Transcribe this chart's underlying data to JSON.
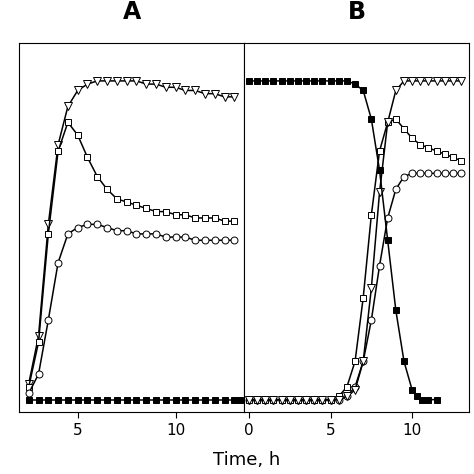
{
  "panel_A": {
    "label": "A",
    "x_range": [
      2,
      13.5
    ],
    "x_ticks": [
      5,
      10
    ],
    "series": {
      "open_triangle": {
        "x": [
          2.5,
          3.0,
          3.5,
          4.0,
          4.5,
          5.0,
          5.5,
          6.0,
          6.5,
          7.0,
          7.5,
          8.0,
          8.5,
          9.0,
          9.5,
          10.0,
          10.5,
          11.0,
          11.5,
          12.0,
          12.5,
          13.0
        ],
        "y": [
          0.05,
          0.2,
          0.55,
          0.8,
          0.92,
          0.97,
          0.99,
          1.0,
          1.0,
          1.0,
          1.0,
          1.0,
          0.99,
          0.99,
          0.98,
          0.98,
          0.97,
          0.97,
          0.96,
          0.96,
          0.95,
          0.95
        ]
      },
      "open_square": {
        "x": [
          2.5,
          3.0,
          3.5,
          4.0,
          4.5,
          5.0,
          5.5,
          6.0,
          6.5,
          7.0,
          7.5,
          8.0,
          8.5,
          9.0,
          9.5,
          10.0,
          10.5,
          11.0,
          11.5,
          12.0,
          12.5,
          13.0
        ],
        "y": [
          0.04,
          0.18,
          0.52,
          0.78,
          0.87,
          0.83,
          0.76,
          0.7,
          0.66,
          0.63,
          0.62,
          0.61,
          0.6,
          0.59,
          0.59,
          0.58,
          0.58,
          0.57,
          0.57,
          0.57,
          0.56,
          0.56
        ]
      },
      "open_circle": {
        "x": [
          2.5,
          3.0,
          3.5,
          4.0,
          4.5,
          5.0,
          5.5,
          6.0,
          6.5,
          7.0,
          7.5,
          8.0,
          8.5,
          9.0,
          9.5,
          10.0,
          10.5,
          11.0,
          11.5,
          12.0,
          12.5,
          13.0
        ],
        "y": [
          0.02,
          0.08,
          0.25,
          0.43,
          0.52,
          0.54,
          0.55,
          0.55,
          0.54,
          0.53,
          0.53,
          0.52,
          0.52,
          0.52,
          0.51,
          0.51,
          0.51,
          0.5,
          0.5,
          0.5,
          0.5,
          0.5
        ]
      },
      "filled_square": {
        "x": [
          2.5,
          3.0,
          3.5,
          4.0,
          4.5,
          5.0,
          5.5,
          6.0,
          6.5,
          7.0,
          7.5,
          8.0,
          8.5,
          9.0,
          9.5,
          10.0,
          10.5,
          11.0,
          11.5,
          12.0,
          12.5,
          13.0,
          13.3
        ],
        "y": [
          0.0,
          0.0,
          0.0,
          0.0,
          0.0,
          0.0,
          0.0,
          0.0,
          0.0,
          0.0,
          0.0,
          0.0,
          0.0,
          0.0,
          0.0,
          0.0,
          0.0,
          0.0,
          0.0,
          0.0,
          0.0,
          0.0,
          0.0
        ]
      }
    }
  },
  "panel_B": {
    "label": "B",
    "x_range": [
      -0.3,
      13.5
    ],
    "x_ticks": [
      0,
      5,
      10
    ],
    "series": {
      "filled_square": {
        "x": [
          0.0,
          0.5,
          1.0,
          1.5,
          2.0,
          2.5,
          3.0,
          3.5,
          4.0,
          4.5,
          5.0,
          5.5,
          6.0,
          6.5,
          7.0,
          7.5,
          8.0,
          8.5,
          9.0,
          9.5,
          10.0,
          10.3,
          10.6,
          11.0,
          11.5
        ],
        "y": [
          1.0,
          1.0,
          1.0,
          1.0,
          1.0,
          1.0,
          1.0,
          1.0,
          1.0,
          1.0,
          1.0,
          1.0,
          1.0,
          0.99,
          0.97,
          0.88,
          0.72,
          0.5,
          0.28,
          0.12,
          0.03,
          0.01,
          0.0,
          0.0,
          0.0
        ]
      },
      "open_triangle": {
        "x": [
          0.0,
          0.5,
          1.0,
          1.5,
          2.0,
          2.5,
          3.0,
          3.5,
          4.0,
          4.5,
          5.0,
          5.5,
          6.0,
          6.5,
          7.0,
          7.5,
          8.0,
          8.5,
          9.0,
          9.5,
          10.0,
          10.5,
          11.0,
          11.5,
          12.0,
          12.5,
          13.0
        ],
        "y": [
          0.0,
          0.0,
          0.0,
          0.0,
          0.0,
          0.0,
          0.0,
          0.0,
          0.0,
          0.0,
          0.0,
          0.0,
          0.01,
          0.03,
          0.12,
          0.35,
          0.65,
          0.87,
          0.97,
          1.0,
          1.0,
          1.0,
          1.0,
          1.0,
          1.0,
          1.0,
          1.0
        ]
      },
      "open_square": {
        "x": [
          0.0,
          0.5,
          1.0,
          1.5,
          2.0,
          2.5,
          3.0,
          3.5,
          4.0,
          4.5,
          5.0,
          5.5,
          6.0,
          6.5,
          7.0,
          7.5,
          8.0,
          8.5,
          9.0,
          9.5,
          10.0,
          10.5,
          11.0,
          11.5,
          12.0,
          12.5,
          13.0
        ],
        "y": [
          0.0,
          0.0,
          0.0,
          0.0,
          0.0,
          0.0,
          0.0,
          0.0,
          0.0,
          0.0,
          0.0,
          0.01,
          0.04,
          0.12,
          0.32,
          0.58,
          0.78,
          0.87,
          0.88,
          0.85,
          0.82,
          0.8,
          0.79,
          0.78,
          0.77,
          0.76,
          0.75
        ]
      },
      "open_circle": {
        "x": [
          0.0,
          0.5,
          1.0,
          1.5,
          2.0,
          2.5,
          3.0,
          3.5,
          4.0,
          4.5,
          5.0,
          5.5,
          6.0,
          6.5,
          7.0,
          7.5,
          8.0,
          8.5,
          9.0,
          9.5,
          10.0,
          10.5,
          11.0,
          11.5,
          12.0,
          12.5,
          13.0
        ],
        "y": [
          0.0,
          0.0,
          0.0,
          0.0,
          0.0,
          0.0,
          0.0,
          0.0,
          0.0,
          0.0,
          0.0,
          0.0,
          0.01,
          0.04,
          0.12,
          0.25,
          0.42,
          0.57,
          0.66,
          0.7,
          0.71,
          0.71,
          0.71,
          0.71,
          0.71,
          0.71,
          0.71
        ]
      }
    }
  },
  "xlabel": "Time, h",
  "background_color": "#ffffff",
  "marker_size": 5,
  "linewidth": 1.1
}
